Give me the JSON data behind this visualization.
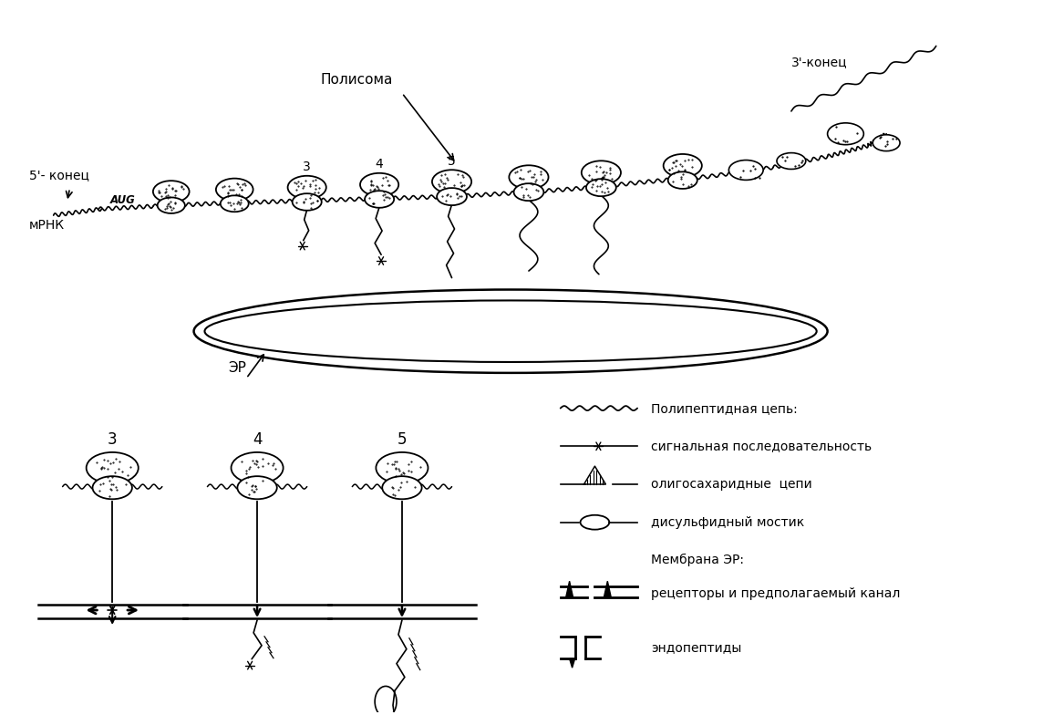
{
  "bg_color": "#ffffff",
  "label_polisoma": "Полисома",
  "label_5end": "5'- конец",
  "label_3end": "3'-конец",
  "label_aug": "AUG",
  "label_mrna": "мРНК",
  "label_er": "ЭР",
  "label_polypeptide": "Полипептидная цепь:",
  "label_signal": "сигнальная последовательность",
  "label_oligo": "олигосахаридные  цепи",
  "label_disulfide": "дисульфидный мостик",
  "label_membrane_er": "Мембрана ЭР:",
  "label_receptors": "рецепторы и предполагаемый канал",
  "label_endopeptides": "эндопептиды"
}
